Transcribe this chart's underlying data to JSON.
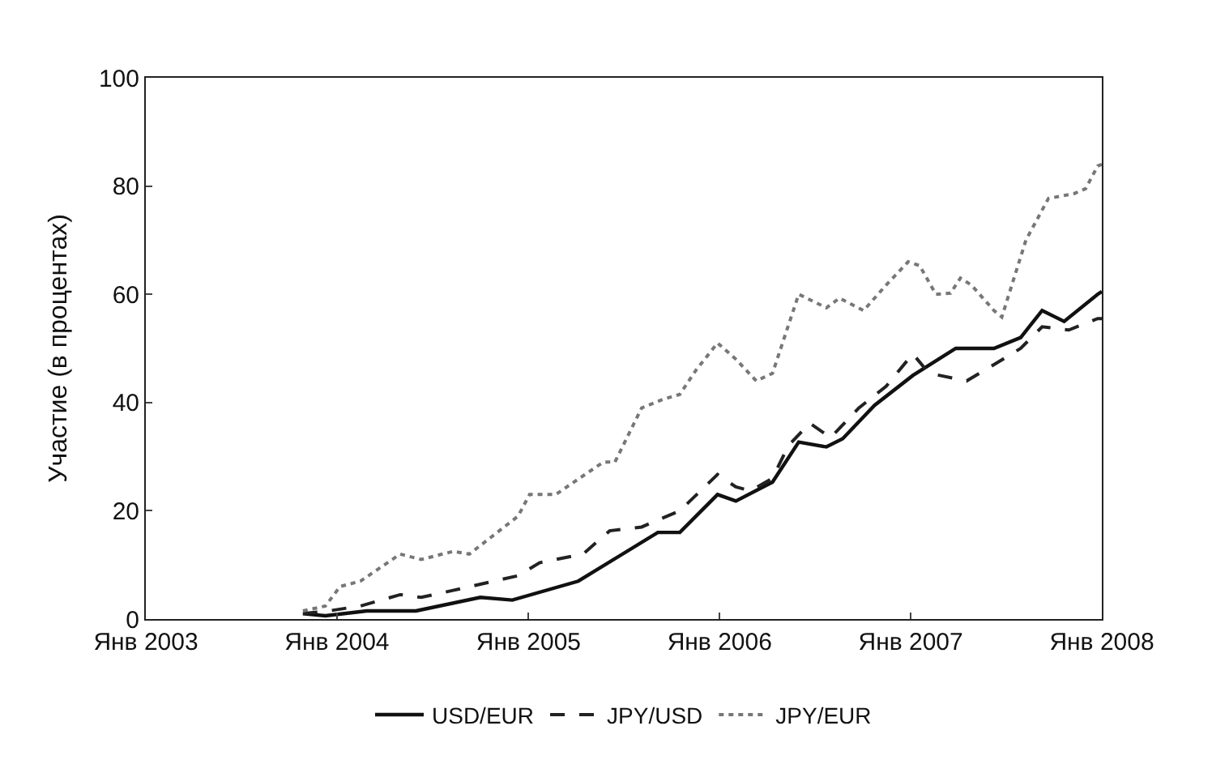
{
  "chart_data": {
    "type": "line",
    "ylabel": "Участие (в процентах)",
    "xlim": [
      "2003-01-01",
      "2008-01-01"
    ],
    "xticks": [
      {
        "value": "2003-01-01",
        "label": "Янв 2003"
      },
      {
        "value": "2004-01-01",
        "label": "Янв 2004"
      },
      {
        "value": "2005-01-01",
        "label": "Янв 2005"
      },
      {
        "value": "2006-01-01",
        "label": "Янв 2006"
      },
      {
        "value": "2007-01-01",
        "label": "Янв 2007"
      },
      {
        "value": "2008-01-01",
        "label": "Янв 2008"
      }
    ],
    "ylim": [
      0,
      100
    ],
    "yticks": [
      0,
      20,
      40,
      60,
      80,
      100
    ],
    "legend": "bottom",
    "marker": "none",
    "series": [
      {
        "name": "USD/EUR",
        "color": "#111111",
        "line_style": "solid",
        "x": [
          "2003-10-28",
          "2003-12-10",
          "2004-02-27",
          "2004-05-31",
          "2004-10-01",
          "2004-12-01",
          "2005-04-06",
          "2005-09-05",
          "2005-10-17",
          "2005-12-28",
          "2006-02-01",
          "2006-04-12",
          "2006-06-01",
          "2006-07-24",
          "2006-08-24",
          "2006-10-24",
          "2007-01-05",
          "2007-03-28",
          "2007-06-09",
          "2007-07-30",
          "2007-09-09",
          "2007-10-21",
          "2007-12-24",
          "2008-01-01"
        ],
        "values": [
          1,
          0.6,
          1.5,
          1.5,
          4,
          3.5,
          7,
          16,
          16,
          23,
          21.8,
          25.3,
          32.7,
          31.8,
          33.3,
          39.5,
          45,
          50,
          50,
          52,
          57,
          55,
          60,
          60.5
        ]
      },
      {
        "name": "JPY/USD",
        "color": "#222222",
        "line_style": "dashed",
        "x": [
          "2003-10-28",
          "2003-12-16",
          "2004-02-15",
          "2004-05-01",
          "2004-06-10",
          "2004-08-10",
          "2004-12-12",
          "2005-01-22",
          "2005-04-15",
          "2005-06-05",
          "2005-08-05",
          "2005-10-17",
          "2005-12-28",
          "2006-02-01",
          "2006-03-01",
          "2006-04-12",
          "2006-05-12",
          "2006-06-22",
          "2006-08-01",
          "2006-09-24",
          "2006-11-15",
          "2007-01-05",
          "2007-02-05",
          "2007-04-18",
          "2007-06-09",
          "2007-07-30",
          "2007-09-09",
          "2007-10-30",
          "2007-12-24",
          "2008-01-01"
        ],
        "values": [
          1,
          1.5,
          2.4,
          4.5,
          4,
          5.3,
          8,
          10.4,
          12,
          16.3,
          17,
          20,
          26.7,
          24.4,
          23.7,
          26,
          32,
          36.2,
          33.5,
          39,
          43,
          49,
          45.4,
          44,
          47,
          50,
          54,
          53.4,
          55.5,
          55.5
        ]
      },
      {
        "name": "JPY/EUR",
        "color": "#777777",
        "line_style": "dotted",
        "x": [
          "2003-10-28",
          "2003-12-10",
          "2004-01-07",
          "2004-02-15",
          "2004-05-01",
          "2004-06-10",
          "2004-08-10",
          "2004-09-10",
          "2004-12-12",
          "2005-01-03",
          "2005-02-22",
          "2005-03-24",
          "2005-05-24",
          "2005-06-15",
          "2005-08-05",
          "2005-09-15",
          "2005-10-17",
          "2005-11-17",
          "2005-12-28",
          "2006-02-01",
          "2006-03-12",
          "2006-04-12",
          "2006-06-01",
          "2006-07-24",
          "2006-08-18",
          "2006-10-03",
          "2006-11-15",
          "2006-12-27",
          "2007-01-18",
          "2007-02-18",
          "2007-03-18",
          "2007-04-06",
          "2007-04-27",
          "2007-06-09",
          "2007-06-24",
          "2007-08-09",
          "2007-09-21",
          "2007-11-09",
          "2007-12-01",
          "2007-12-24",
          "2008-01-01"
        ],
        "values": [
          1.5,
          2.4,
          6,
          7,
          12,
          11,
          12.5,
          12,
          19,
          23,
          23,
          25,
          29,
          29,
          39,
          40.6,
          41.5,
          46,
          51,
          48,
          44,
          45.4,
          60,
          57.5,
          59.3,
          57,
          61.7,
          66,
          65.3,
          60,
          60.2,
          63,
          61.7,
          57,
          55.8,
          70,
          77.7,
          78.6,
          79.5,
          83.7,
          84
        ]
      }
    ]
  }
}
